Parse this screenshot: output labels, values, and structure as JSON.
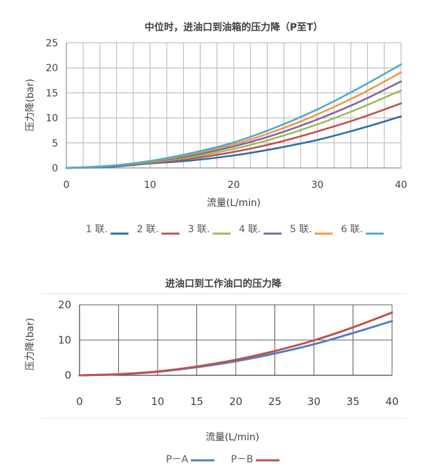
{
  "chart_data": [
    {
      "type": "line",
      "title": "中位时，进油口到油箱的压力降（P至T）",
      "xlabel": "流量(L/min)",
      "ylabel": "压力降(bar)",
      "xlim": [
        0,
        40
      ],
      "ylim": [
        0,
        25
      ],
      "xticks": [
        "0",
        "10",
        "20",
        "30",
        "40"
      ],
      "yticks": [
        "0",
        "5",
        "10",
        "15",
        "20",
        "25"
      ],
      "grid": true,
      "legend_position": "bottom",
      "x": [
        0,
        5,
        10,
        15,
        20,
        25,
        30,
        35,
        40
      ],
      "series": [
        {
          "name": "1 联.",
          "color": "#2E6BA8",
          "values": [
            0,
            0.2,
            0.9,
            1.5,
            2.5,
            3.9,
            5.6,
            7.8,
            10.3
          ]
        },
        {
          "name": "2 联.",
          "color": "#C0504D",
          "values": [
            0,
            0.3,
            1.0,
            1.9,
            3.2,
            5.0,
            7.3,
            9.9,
            12.9
          ]
        },
        {
          "name": "3 联.",
          "color": "#9BBB59",
          "values": [
            0,
            0.3,
            1.1,
            2.2,
            3.8,
            6.0,
            8.7,
            11.9,
            15.5
          ]
        },
        {
          "name": "4 联.",
          "color": "#8064A2",
          "values": [
            0,
            0.3,
            1.2,
            2.5,
            4.3,
            6.7,
            9.7,
            13.2,
            17.3
          ]
        },
        {
          "name": "5 联.",
          "color": "#F79646",
          "values": [
            0,
            0.4,
            1.3,
            2.8,
            4.7,
            7.4,
            10.7,
            14.6,
            19.1
          ]
        },
        {
          "name": "6 联.",
          "color": "#4BACC6",
          "values": [
            0,
            0.4,
            1.4,
            3.0,
            5.1,
            8.1,
            11.7,
            16.0,
            20.7
          ]
        }
      ]
    },
    {
      "type": "line",
      "title": "进油口到工作油口的压力降",
      "xlabel": "流量(L/min)",
      "ylabel": "压力降(bar)",
      "xlim": [
        0,
        40
      ],
      "ylim": [
        0,
        20
      ],
      "xticks": [
        "0",
        "5",
        "10",
        "15",
        "20",
        "25",
        "30",
        "35",
        "40"
      ],
      "yticks": [
        "0",
        "10",
        "20"
      ],
      "grid": true,
      "legend_position": "bottom",
      "x": [
        0,
        5,
        10,
        15,
        20,
        25,
        30,
        35,
        40
      ],
      "series": [
        {
          "name": "P－A",
          "color": "#4F81BD",
          "values": [
            0,
            0.3,
            1.0,
            2.3,
            4.0,
            6.2,
            8.8,
            12.0,
            15.4
          ]
        },
        {
          "name": "P－B",
          "color": "#C0504D",
          "values": [
            0,
            0.3,
            1.1,
            2.5,
            4.4,
            6.9,
            9.9,
            13.6,
            17.8
          ]
        }
      ]
    }
  ]
}
